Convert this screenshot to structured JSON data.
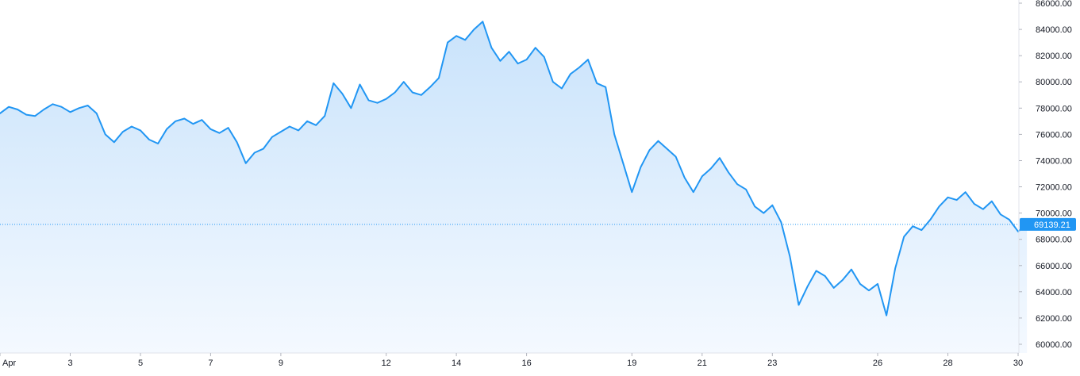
{
  "chart_data": {
    "type": "area",
    "title": "",
    "xlabel": "",
    "ylabel": "",
    "ylim": [
      59500,
      86200
    ],
    "xlim": [
      "2024-04-01",
      "2024-04-30"
    ],
    "x_ticks": [
      {
        "date": "2024-04-01",
        "label": "Apr"
      },
      {
        "date": "2024-04-03",
        "label": "3"
      },
      {
        "date": "2024-04-05",
        "label": "5"
      },
      {
        "date": "2024-04-07",
        "label": "7"
      },
      {
        "date": "2024-04-09",
        "label": "9"
      },
      {
        "date": "2024-04-12",
        "label": "12"
      },
      {
        "date": "2024-04-14",
        "label": "14"
      },
      {
        "date": "2024-04-16",
        "label": "16"
      },
      {
        "date": "2024-04-19",
        "label": "19"
      },
      {
        "date": "2024-04-21",
        "label": "21"
      },
      {
        "date": "2024-04-23",
        "label": "23"
      },
      {
        "date": "2024-04-26",
        "label": "26"
      },
      {
        "date": "2024-04-28",
        "label": "28"
      },
      {
        "date": "2024-04-30",
        "label": "30"
      }
    ],
    "y_ticks": [
      {
        "value": 60000,
        "label": "60000.00"
      },
      {
        "value": 62000,
        "label": "62000.00"
      },
      {
        "value": 64000,
        "label": "64000.00"
      },
      {
        "value": 66000,
        "label": "66000.00"
      },
      {
        "value": 68000,
        "label": "68000.00"
      },
      {
        "value": 70000,
        "label": "70000.00"
      },
      {
        "value": 72000,
        "label": "72000.00"
      },
      {
        "value": 74000,
        "label": "74000.00"
      },
      {
        "value": 76000,
        "label": "76000.00"
      },
      {
        "value": 78000,
        "label": "78000.00"
      },
      {
        "value": 80000,
        "label": "80000.00"
      },
      {
        "value": 82000,
        "label": "82000.00"
      },
      {
        "value": 84000,
        "label": "84000.00"
      },
      {
        "value": 86000,
        "label": "86000.00"
      }
    ],
    "last_value": 69139.21,
    "last_value_label": "69139.21",
    "grid": false,
    "series": [
      {
        "color": "#2196f3",
        "points": [
          [
            "2024-04-01 00:00",
            77600
          ],
          [
            "2024-04-01 06:00",
            78100
          ],
          [
            "2024-04-01 12:00",
            77900
          ],
          [
            "2024-04-01 18:00",
            77500
          ],
          [
            "2024-04-02 00:00",
            77400
          ],
          [
            "2024-04-02 06:00",
            77900
          ],
          [
            "2024-04-02 12:00",
            78300
          ],
          [
            "2024-04-02 18:00",
            78100
          ],
          [
            "2024-04-03 00:00",
            77700
          ],
          [
            "2024-04-03 06:00",
            78000
          ],
          [
            "2024-04-03 12:00",
            78200
          ],
          [
            "2024-04-03 18:00",
            77600
          ],
          [
            "2024-04-04 00:00",
            76000
          ],
          [
            "2024-04-04 06:00",
            75400
          ],
          [
            "2024-04-04 12:00",
            76200
          ],
          [
            "2024-04-04 18:00",
            76600
          ],
          [
            "2024-04-05 00:00",
            76300
          ],
          [
            "2024-04-05 06:00",
            75600
          ],
          [
            "2024-04-05 12:00",
            75300
          ],
          [
            "2024-04-05 18:00",
            76400
          ],
          [
            "2024-04-06 00:00",
            77000
          ],
          [
            "2024-04-06 06:00",
            77200
          ],
          [
            "2024-04-06 12:00",
            76800
          ],
          [
            "2024-04-06 18:00",
            77100
          ],
          [
            "2024-04-07 00:00",
            76400
          ],
          [
            "2024-04-07 06:00",
            76100
          ],
          [
            "2024-04-07 12:00",
            76500
          ],
          [
            "2024-04-07 18:00",
            75400
          ],
          [
            "2024-04-08 00:00",
            73800
          ],
          [
            "2024-04-08 06:00",
            74600
          ],
          [
            "2024-04-08 12:00",
            74900
          ],
          [
            "2024-04-08 18:00",
            75800
          ],
          [
            "2024-04-09 00:00",
            76200
          ],
          [
            "2024-04-09 06:00",
            76600
          ],
          [
            "2024-04-09 12:00",
            76300
          ],
          [
            "2024-04-09 18:00",
            77000
          ],
          [
            "2024-04-10 00:00",
            76700
          ],
          [
            "2024-04-10 06:00",
            77400
          ],
          [
            "2024-04-10 12:00",
            79900
          ],
          [
            "2024-04-10 18:00",
            79100
          ],
          [
            "2024-04-11 00:00",
            78000
          ],
          [
            "2024-04-11 06:00",
            79800
          ],
          [
            "2024-04-11 12:00",
            78600
          ],
          [
            "2024-04-11 18:00",
            78400
          ],
          [
            "2024-04-12 00:00",
            78700
          ],
          [
            "2024-04-12 06:00",
            79200
          ],
          [
            "2024-04-12 12:00",
            80000
          ],
          [
            "2024-04-12 18:00",
            79200
          ],
          [
            "2024-04-13 00:00",
            79000
          ],
          [
            "2024-04-13 06:00",
            79600
          ],
          [
            "2024-04-13 12:00",
            80300
          ],
          [
            "2024-04-13 18:00",
            83000
          ],
          [
            "2024-04-14 00:00",
            83500
          ],
          [
            "2024-04-14 06:00",
            83200
          ],
          [
            "2024-04-14 12:00",
            84000
          ],
          [
            "2024-04-14 18:00",
            84600
          ],
          [
            "2024-04-15 00:00",
            82600
          ],
          [
            "2024-04-15 06:00",
            81600
          ],
          [
            "2024-04-15 12:00",
            82300
          ],
          [
            "2024-04-15 18:00",
            81400
          ],
          [
            "2024-04-16 00:00",
            81700
          ],
          [
            "2024-04-16 06:00",
            82600
          ],
          [
            "2024-04-16 12:00",
            81900
          ],
          [
            "2024-04-16 18:00",
            80000
          ],
          [
            "2024-04-17 00:00",
            79500
          ],
          [
            "2024-04-17 06:00",
            80600
          ],
          [
            "2024-04-17 12:00",
            81100
          ],
          [
            "2024-04-17 18:00",
            81700
          ],
          [
            "2024-04-18 00:00",
            79900
          ],
          [
            "2024-04-18 06:00",
            79600
          ],
          [
            "2024-04-18 12:00",
            76000
          ],
          [
            "2024-04-18 18:00",
            73800
          ],
          [
            "2024-04-19 00:00",
            71600
          ],
          [
            "2024-04-19 06:00",
            73500
          ],
          [
            "2024-04-19 12:00",
            74800
          ],
          [
            "2024-04-19 18:00",
            75500
          ],
          [
            "2024-04-20 00:00",
            74900
          ],
          [
            "2024-04-20 06:00",
            74300
          ],
          [
            "2024-04-20 12:00",
            72700
          ],
          [
            "2024-04-20 18:00",
            71600
          ],
          [
            "2024-04-21 00:00",
            72800
          ],
          [
            "2024-04-21 06:00",
            73400
          ],
          [
            "2024-04-21 12:00",
            74200
          ],
          [
            "2024-04-21 18:00",
            73100
          ],
          [
            "2024-04-22 00:00",
            72200
          ],
          [
            "2024-04-22 06:00",
            71800
          ],
          [
            "2024-04-22 12:00",
            70500
          ],
          [
            "2024-04-22 18:00",
            70000
          ],
          [
            "2024-04-23 00:00",
            70600
          ],
          [
            "2024-04-23 06:00",
            69300
          ],
          [
            "2024-04-23 12:00",
            66700
          ],
          [
            "2024-04-23 18:00",
            63000
          ],
          [
            "2024-04-24 00:00",
            64400
          ],
          [
            "2024-04-24 06:00",
            65600
          ],
          [
            "2024-04-24 12:00",
            65200
          ],
          [
            "2024-04-24 18:00",
            64300
          ],
          [
            "2024-04-25 00:00",
            64900
          ],
          [
            "2024-04-25 06:00",
            65700
          ],
          [
            "2024-04-25 12:00",
            64600
          ],
          [
            "2024-04-25 18:00",
            64100
          ],
          [
            "2024-04-26 00:00",
            64600
          ],
          [
            "2024-04-26 06:00",
            62200
          ],
          [
            "2024-04-26 12:00",
            65800
          ],
          [
            "2024-04-26 18:00",
            68200
          ],
          [
            "2024-04-27 00:00",
            69000
          ],
          [
            "2024-04-27 06:00",
            68700
          ],
          [
            "2024-04-27 12:00",
            69500
          ],
          [
            "2024-04-27 18:00",
            70500
          ],
          [
            "2024-04-28 00:00",
            71200
          ],
          [
            "2024-04-28 06:00",
            71000
          ],
          [
            "2024-04-28 12:00",
            71600
          ],
          [
            "2024-04-28 18:00",
            70700
          ],
          [
            "2024-04-29 00:00",
            70300
          ],
          [
            "2024-04-29 06:00",
            70900
          ],
          [
            "2024-04-29 12:00",
            69900
          ],
          [
            "2024-04-29 18:00",
            69500
          ],
          [
            "2024-04-30 00:00",
            68600
          ],
          [
            "2024-04-30 06:00",
            69139.21
          ]
        ]
      }
    ]
  },
  "colors": {
    "line": "#2196f3",
    "fill_top": "#c9e3fb",
    "fill_bottom": "#f4f9ff",
    "axis_border": "#e0e3eb",
    "tick_text": "#131722",
    "last_price_bg": "#2196f3",
    "last_price_text": "#ffffff"
  }
}
